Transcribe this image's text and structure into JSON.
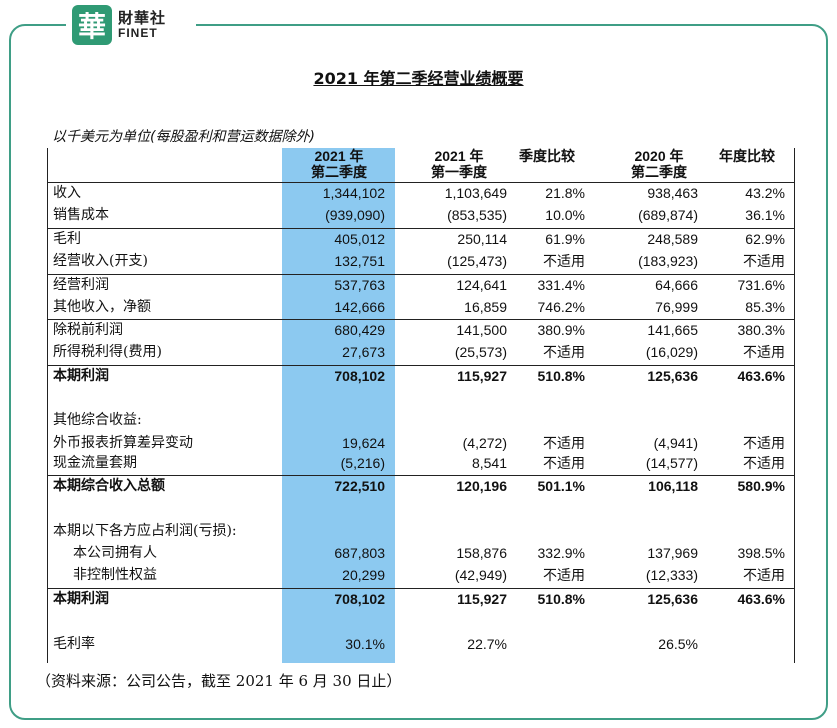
{
  "brand": {
    "seal_char": "華",
    "name_cn": "財華社",
    "name_en": "FINET",
    "accent": "#3f9e86"
  },
  "title": "2021 年第二季经营业绩概要",
  "unit_note": "以千美元为单位(每股盈利和营运数据除外)",
  "columns": [
    {
      "l1": "2021 年",
      "l2": "第二季度"
    },
    {
      "l1": "2021 年",
      "l2": "第一季度"
    },
    {
      "l1": "季度比较",
      "l2": ""
    },
    {
      "l1": "2020 年",
      "l2": "第二季度"
    },
    {
      "l1": "年度比较",
      "l2": ""
    }
  ],
  "rows": [
    {
      "label": "收入",
      "v": [
        "1,344,102",
        "1,103,649",
        "21.8%",
        "938,463",
        "43.2%"
      ]
    },
    {
      "label": "销售成本",
      "v": [
        "(939,090)",
        "(853,535)",
        "10.0%",
        "(689,874)",
        "36.1%"
      ]
    },
    {
      "label": "毛利",
      "v": [
        "405,012",
        "250,114",
        "61.9%",
        "248,589",
        "62.9%"
      ]
    },
    {
      "label": "经营收入(开支)",
      "v": [
        "132,751",
        "(125,473)",
        "不适用",
        "(183,923)",
        "不适用"
      ]
    },
    {
      "label": "经营利润",
      "v": [
        "537,763",
        "124,641",
        "331.4%",
        "64,666",
        "731.6%"
      ]
    },
    {
      "label": "其他收入，净额",
      "v": [
        "142,666",
        "16,859",
        "746.2%",
        "76,999",
        "85.3%"
      ]
    },
    {
      "label": "除税前利润",
      "v": [
        "680,429",
        "141,500",
        "380.9%",
        "141,665",
        "380.3%"
      ]
    },
    {
      "label": "所得税利得(费用)",
      "v": [
        "27,673",
        "(25,573)",
        "不适用",
        "(16,029)",
        "不适用"
      ]
    },
    {
      "label": "本期利润",
      "v": [
        "708,102",
        "115,927",
        "510.8%",
        "125,636",
        "463.6%"
      ]
    },
    {
      "label": "其他综合收益:",
      "v": [
        "",
        "",
        "",
        "",
        ""
      ]
    },
    {
      "label": "外币报表折算差异变动",
      "v": [
        "19,624",
        "(4,272)",
        "不适用",
        "(4,941)",
        "不适用"
      ]
    },
    {
      "label": "现金流量套期",
      "v": [
        "(5,216)",
        "8,541",
        "不适用",
        "(14,577)",
        "不适用"
      ]
    },
    {
      "label": "本期综合收入总额",
      "v": [
        "722,510",
        "120,196",
        "501.1%",
        "106,118",
        "580.9%"
      ]
    },
    {
      "label": "本期以下各方应占利润(亏损):",
      "v": [
        "",
        "",
        "",
        "",
        ""
      ]
    },
    {
      "label": "本公司拥有人",
      "v": [
        "687,803",
        "158,876",
        "332.9%",
        "137,969",
        "398.5%"
      ]
    },
    {
      "label": "非控制性权益",
      "v": [
        "20,299",
        "(42,949)",
        "不适用",
        "(12,333)",
        "不适用"
      ]
    },
    {
      "label": "本期利润",
      "v": [
        "708,102",
        "115,927",
        "510.8%",
        "125,636",
        "463.6%"
      ]
    },
    {
      "label": "毛利率",
      "v": [
        "30.1%",
        "22.7%",
        "",
        "26.5%",
        ""
      ]
    }
  ],
  "source_note": "（资料来源：公司公告，截至 2021 年 6 月 30 日止）"
}
